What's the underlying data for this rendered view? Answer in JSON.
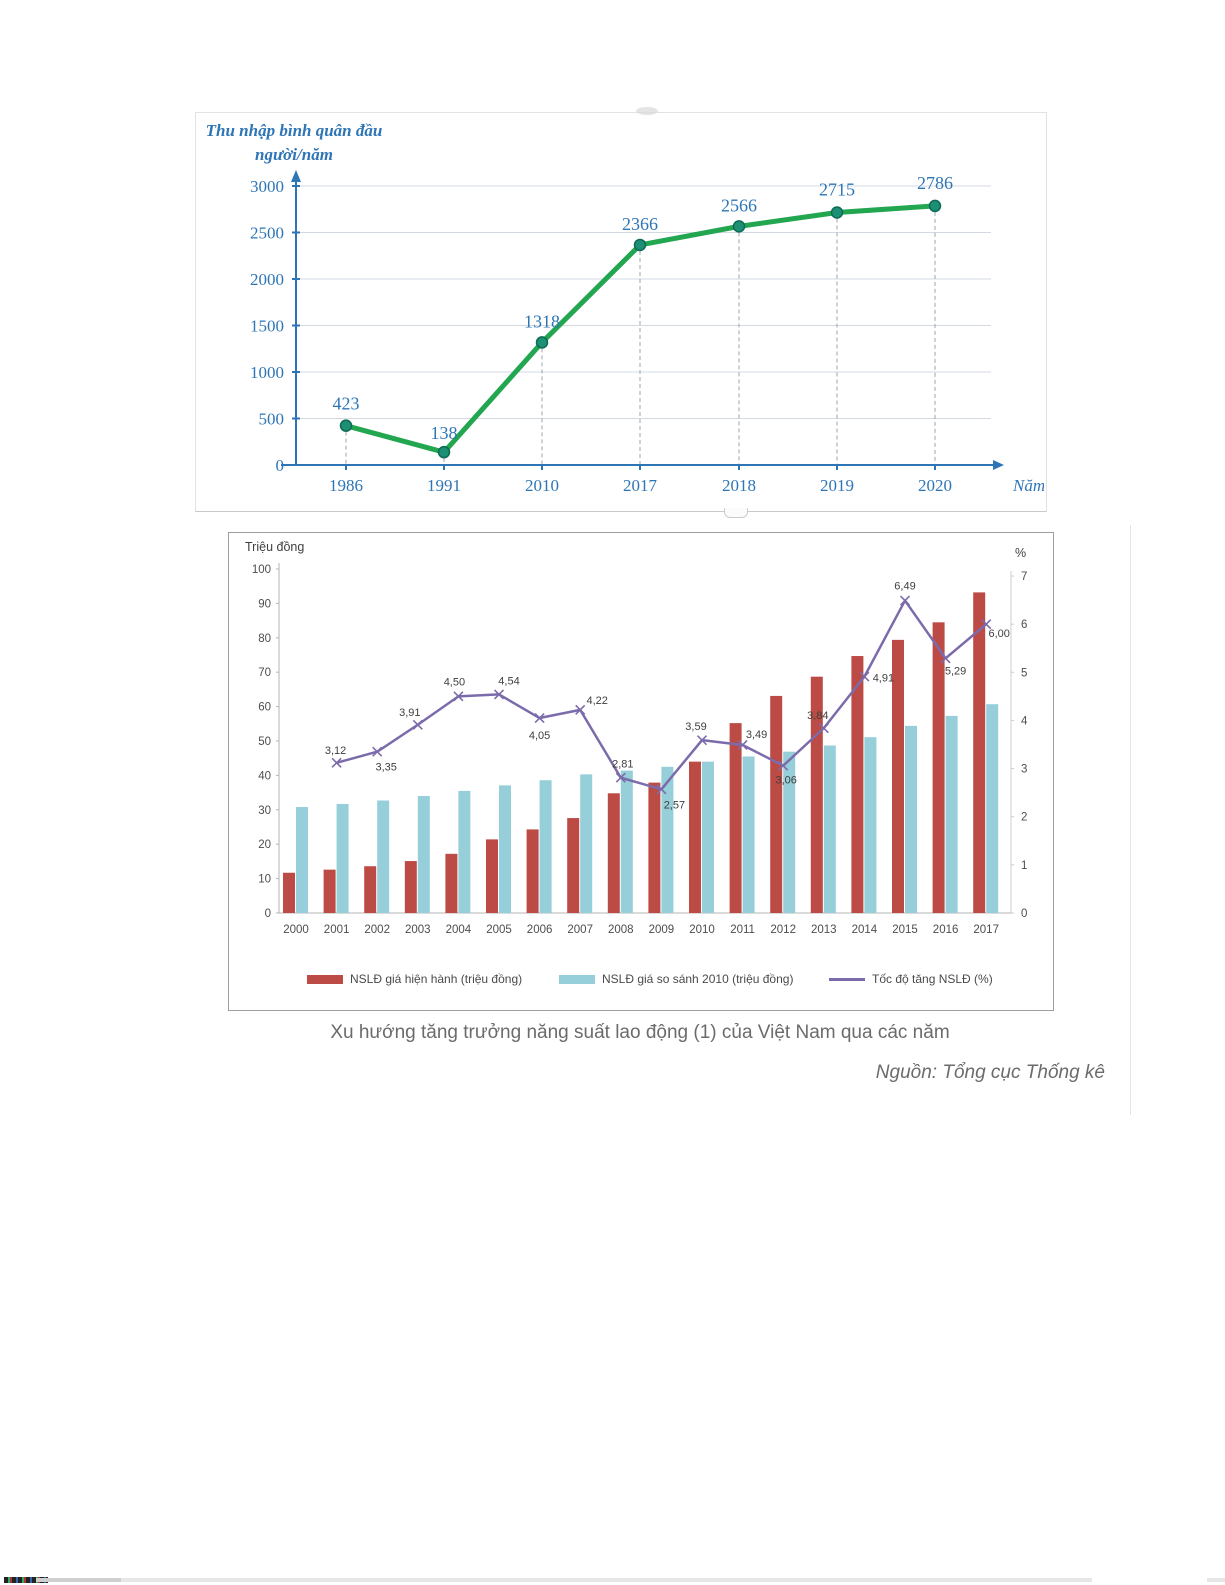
{
  "chart_data": [
    {
      "type": "line",
      "title": "Thu nhập bình quân đầu người/năm",
      "xlabel": "Năm",
      "categories": [
        "1986",
        "1991",
        "2010",
        "2017",
        "2018",
        "2019",
        "2020"
      ],
      "values": [
        423,
        138,
        1318,
        2366,
        2566,
        2715,
        2786
      ],
      "point_labels": [
        "423",
        "138",
        "1318",
        "2366",
        "2566",
        "2715",
        "2786"
      ],
      "ylim": [
        0,
        3000
      ],
      "yticks": [
        0,
        500,
        1000,
        1500,
        2000,
        2500,
        3000
      ],
      "grid": true,
      "legend_position": "none",
      "colors": {
        "line": "#22a650",
        "marker_fill": "#1d8f74",
        "marker_edge": "#0d6b55",
        "axis": "#2e75b6",
        "text": "#2e75b6",
        "gridline": "#d3d9e0",
        "dashed_drop": "#9aa4ae"
      }
    },
    {
      "type": "combo-bar-line",
      "caption": "Xu hướng tăng trưởng năng suất lao động (1) của Việt Nam qua các năm",
      "source": "Nguồn: Tổng cục Thống kê",
      "left_axis_title": "Triệu đồng",
      "right_axis_title": "%",
      "left_ticks": [
        0,
        10,
        20,
        30,
        40,
        50,
        60,
        70,
        80,
        90,
        100
      ],
      "right_ticks": [
        0,
        1,
        2,
        3,
        4,
        5,
        6,
        7
      ],
      "left_ylim": [
        0,
        100
      ],
      "right_ylim": [
        0,
        7
      ],
      "grid": false,
      "legend_position": "bottom",
      "categories": [
        "2000",
        "2001",
        "2002",
        "2003",
        "2004",
        "2005",
        "2006",
        "2007",
        "2008",
        "2009",
        "2010",
        "2011",
        "2012",
        "2013",
        "2014",
        "2015",
        "2016",
        "2017"
      ],
      "series": [
        {
          "name": "NSLĐ giá hiện hành (triệu đồng)",
          "type": "bar",
          "axis": "left",
          "color": "#bc4b45",
          "values": [
            11.7,
            12.6,
            13.6,
            15.1,
            17.2,
            21.4,
            24.3,
            27.6,
            34.8,
            37.9,
            44.0,
            55.2,
            63.1,
            68.7,
            74.7,
            79.4,
            84.5,
            93.2
          ]
        },
        {
          "name": "NSLĐ giá so sánh 2010 (triệu đồng)",
          "type": "bar",
          "axis": "left",
          "color": "#96ceda",
          "values": [
            30.8,
            31.7,
            32.7,
            34.0,
            35.5,
            37.1,
            38.6,
            40.3,
            41.4,
            42.5,
            44.0,
            45.5,
            46.9,
            48.7,
            51.1,
            54.4,
            57.3,
            60.7
          ]
        },
        {
          "name": "Tốc độ tăng NSLĐ (%)",
          "type": "line",
          "axis": "right",
          "color": "#7c6bab",
          "x_start_index": 1,
          "values": [
            3.12,
            3.35,
            3.91,
            4.5,
            4.54,
            4.05,
            4.22,
            2.81,
            2.57,
            3.59,
            3.49,
            3.06,
            3.84,
            4.91,
            6.49,
            5.29,
            6.0
          ],
          "point_labels": [
            "3,12",
            "3,35",
            "3,91",
            "4,50",
            "4,54",
            "4,05",
            "4,22",
            "2,81",
            "2,57",
            "3,59",
            "3,49",
            "3,06",
            "3,84",
            "4,91",
            "6,49",
            "5,29",
            "6,00"
          ]
        }
      ]
    }
  ]
}
